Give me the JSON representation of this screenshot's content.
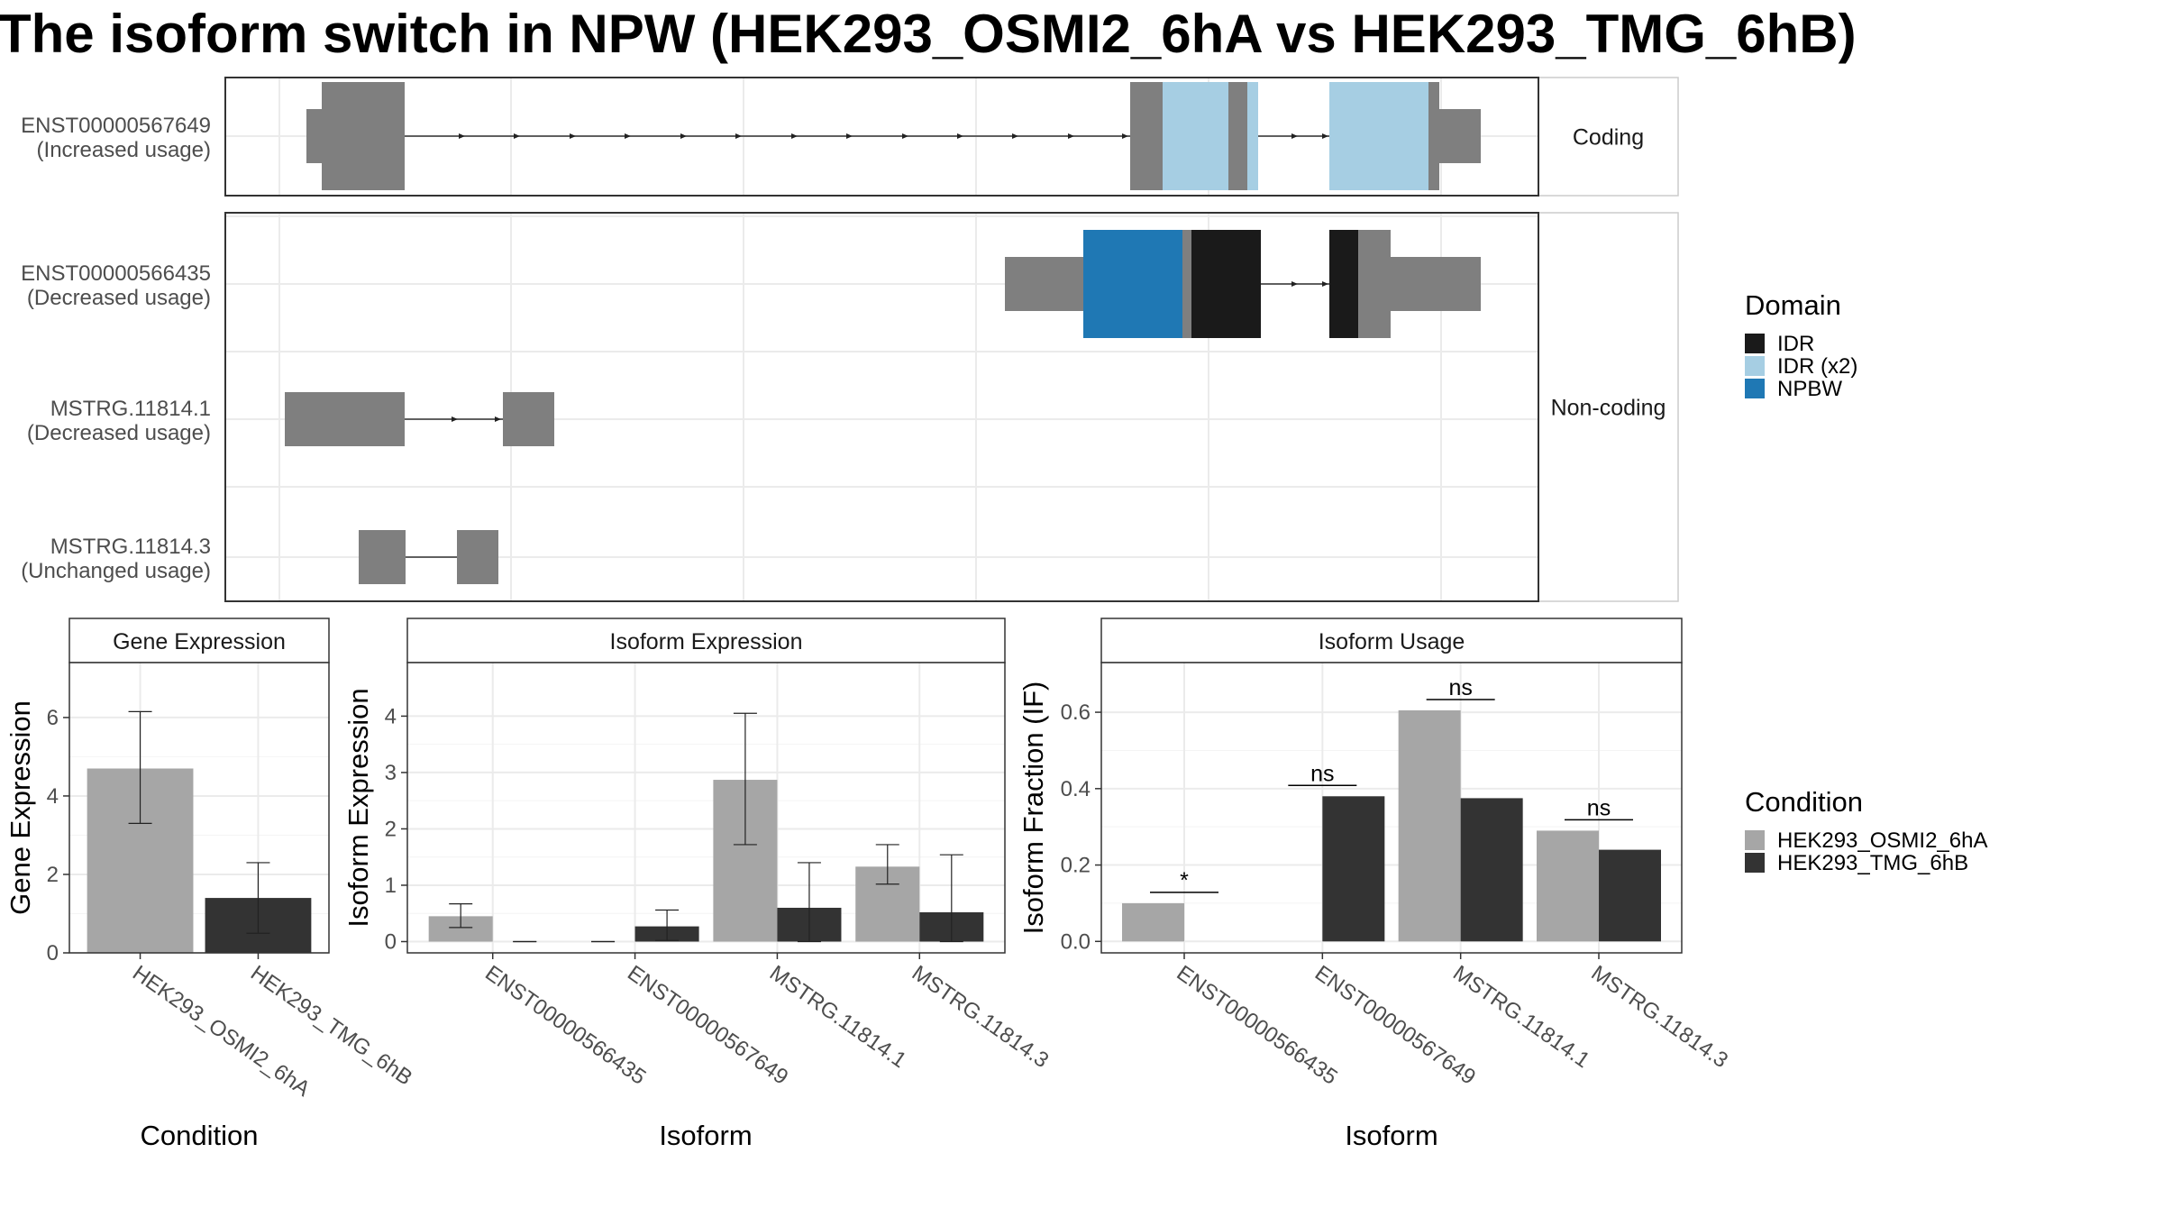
{
  "title": "The isoform switch in NPW (HEK293_OSMI2_6hA vs HEK293_TMG_6hB)",
  "colors": {
    "exon": "#7f7f7f",
    "IDR": "#1a1a1a",
    "IDR (x2)": "#a6cee3",
    "NPBW": "#1f78b4",
    "HEK293_OSMI2_6hA": "#a6a6a6",
    "HEK293_TMG_6hB": "#333333"
  },
  "structure": {
    "transcripts": [
      {
        "id": "ENST00000567649",
        "usage": "(Increased usage)",
        "group": "Coding"
      },
      {
        "id": "ENST00000566435",
        "usage": "(Decreased usage)",
        "group": "Non-coding"
      },
      {
        "id": "MSTRG.11814.1",
        "usage": "(Decreased usage)",
        "group": "Non-coding"
      },
      {
        "id": "MSTRG.11814.3",
        "usage": "(Unchanged usage)",
        "group": "Non-coding"
      }
    ],
    "groups": [
      "Coding",
      "Non-coding"
    ]
  },
  "legend_domain": {
    "title": "Domain",
    "items": [
      {
        "label": "IDR",
        "color": "#1a1a1a"
      },
      {
        "label": "IDR (x2)",
        "color": "#a6cee3"
      },
      {
        "label": "NPBW",
        "color": "#1f78b4"
      }
    ]
  },
  "legend_condition": {
    "title": "Condition",
    "items": [
      {
        "label": "HEK293_OSMI2_6hA",
        "color": "#a6a6a6"
      },
      {
        "label": "HEK293_TMG_6hB",
        "color": "#333333"
      }
    ]
  },
  "chart_data": [
    {
      "type": "bar",
      "panel": "Gene Expression",
      "xlabel": "Condition",
      "ylabel": "Gene Expression",
      "ylim": [
        0,
        7.4
      ],
      "yticks": [
        0,
        2,
        4,
        6
      ],
      "categories": [
        "HEK293_OSMI2_6hA",
        "HEK293_TMG_6hB"
      ],
      "values": [
        4.7,
        1.4
      ],
      "errors": [
        [
          3.3,
          6.15
        ],
        [
          0.5,
          2.3
        ]
      ]
    },
    {
      "type": "bar",
      "panel": "Isoform Expression",
      "xlabel": "Isoform",
      "ylabel": "Isoform Expression",
      "ylim": [
        -0.2,
        4.95
      ],
      "yticks": [
        0,
        1,
        2,
        3,
        4
      ],
      "categories": [
        "ENST00000566435",
        "ENST00000567649",
        "MSTRG.11814.1",
        "MSTRG.11814.3"
      ],
      "series": [
        {
          "name": "HEK293_OSMI2_6hA",
          "values": [
            0.45,
            0.0,
            2.87,
            1.33
          ],
          "errors": [
            [
              0.25,
              0.67
            ],
            [
              0,
              0
            ],
            [
              1.72,
              4.05
            ],
            [
              1.02,
              1.72
            ]
          ]
        },
        {
          "name": "HEK293_TMG_6hB",
          "values": [
            0.0,
            0.27,
            0.6,
            0.52
          ],
          "errors": [
            [
              0,
              0
            ],
            [
              0.02,
              0.56
            ],
            [
              0.0,
              1.4
            ],
            [
              0.0,
              1.54
            ]
          ]
        }
      ]
    },
    {
      "type": "bar",
      "panel": "Isoform Usage",
      "xlabel": "Isoform",
      "ylabel": "Isoform Fraction (IF)",
      "ylim": [
        -0.03,
        0.73
      ],
      "yticks": [
        "0.0",
        "0.2",
        "0.4",
        "0.6"
      ],
      "categories": [
        "ENST00000566435",
        "ENST00000567649",
        "MSTRG.11814.1",
        "MSTRG.11814.3"
      ],
      "series": [
        {
          "name": "HEK293_OSMI2_6hA",
          "values": [
            0.1,
            0.0,
            0.605,
            0.29
          ]
        },
        {
          "name": "HEK293_TMG_6hB",
          "values": [
            0.0,
            0.38,
            0.375,
            0.24
          ]
        }
      ],
      "significance": [
        "*",
        "ns",
        "ns",
        "ns"
      ]
    }
  ]
}
